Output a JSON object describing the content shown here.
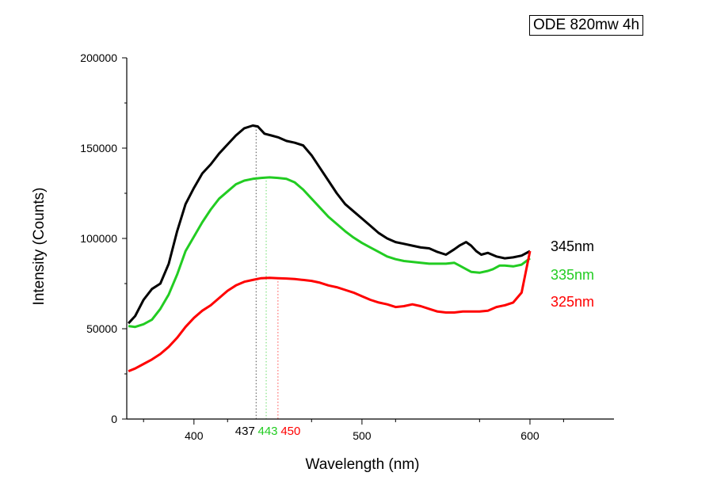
{
  "chart_data": {
    "type": "line",
    "title": "ODE 820mw 4h",
    "xlabel": "Wavelength (nm)",
    "ylabel": "Intensity (Counts)",
    "xlim": [
      360,
      650
    ],
    "ylim": [
      0,
      200000
    ],
    "x_ticks": [
      "400",
      "500",
      "600"
    ],
    "y_ticks": [
      "0",
      "50000",
      "100000",
      "150000",
      "200000"
    ],
    "markers": [
      {
        "x": 437,
        "label": "437",
        "color": "#000000"
      },
      {
        "x": 443,
        "label": "443",
        "color": "#22cc22"
      },
      {
        "x": 450,
        "label": "450",
        "color": "#ff0000"
      }
    ],
    "series": [
      {
        "name": "345nm",
        "color": "#000000",
        "x": [
          361,
          365,
          370,
          375,
          380,
          385,
          390,
          395,
          400,
          405,
          410,
          415,
          420,
          425,
          430,
          435,
          438,
          442,
          446,
          450,
          455,
          460,
          465,
          470,
          475,
          480,
          485,
          490,
          495,
          500,
          505,
          510,
          515,
          520,
          525,
          530,
          535,
          540,
          545,
          550,
          555,
          558,
          562,
          565,
          568,
          571,
          575,
          580,
          585,
          590,
          595,
          600
        ],
        "values": [
          53000,
          57000,
          66000,
          72000,
          75000,
          86000,
          104000,
          119000,
          128000,
          136000,
          141000,
          147000,
          152000,
          157000,
          161000,
          162500,
          162000,
          158000,
          157000,
          156000,
          154000,
          153000,
          151500,
          146000,
          139000,
          132000,
          125000,
          119000,
          115000,
          111000,
          107000,
          103000,
          100000,
          98000,
          97000,
          96000,
          95000,
          94500,
          92500,
          91000,
          94000,
          96000,
          98000,
          96000,
          93000,
          91000,
          92000,
          90000,
          89000,
          89500,
          90500,
          93000
        ]
      },
      {
        "name": "335nm",
        "color": "#22cc22",
        "x": [
          361,
          365,
          370,
          375,
          380,
          385,
          390,
          395,
          400,
          405,
          410,
          415,
          420,
          425,
          430,
          435,
          440,
          445,
          450,
          455,
          460,
          465,
          470,
          475,
          480,
          485,
          490,
          495,
          500,
          505,
          510,
          515,
          520,
          525,
          530,
          535,
          540,
          545,
          550,
          555,
          558,
          562,
          565,
          570,
          575,
          578,
          582,
          585,
          590,
          595,
          600
        ],
        "values": [
          51500,
          51000,
          52500,
          55000,
          61000,
          69000,
          80000,
          93000,
          101000,
          109000,
          116000,
          122000,
          126000,
          130000,
          132000,
          133000,
          133500,
          133800,
          133500,
          133000,
          131000,
          127000,
          122000,
          117000,
          112000,
          108000,
          104000,
          100500,
          97500,
          95000,
          92500,
          90000,
          88500,
          87500,
          87000,
          86500,
          86000,
          86000,
          86000,
          86500,
          85000,
          83000,
          81500,
          81000,
          82000,
          83000,
          85000,
          85000,
          84500,
          85500,
          89000
        ]
      },
      {
        "name": "325nm",
        "color": "#ff0000",
        "x": [
          361,
          365,
          370,
          375,
          380,
          385,
          390,
          395,
          400,
          405,
          410,
          415,
          420,
          425,
          430,
          435,
          440,
          445,
          450,
          455,
          460,
          465,
          470,
          475,
          480,
          485,
          490,
          495,
          500,
          505,
          510,
          515,
          520,
          525,
          530,
          535,
          540,
          545,
          550,
          555,
          560,
          565,
          570,
          575,
          580,
          585,
          590,
          595,
          600
        ],
        "values": [
          26500,
          28000,
          30500,
          33000,
          36000,
          40000,
          45000,
          51000,
          56000,
          60000,
          63000,
          67000,
          71000,
          74000,
          76000,
          77000,
          78000,
          78200,
          78000,
          77800,
          77500,
          77000,
          76500,
          75500,
          74000,
          73000,
          71500,
          70000,
          68000,
          66000,
          64500,
          63500,
          62000,
          62500,
          63500,
          62500,
          61000,
          59500,
          59000,
          59000,
          59500,
          59500,
          59500,
          60000,
          62000,
          63000,
          64500,
          70000,
          93000
        ]
      }
    ]
  }
}
